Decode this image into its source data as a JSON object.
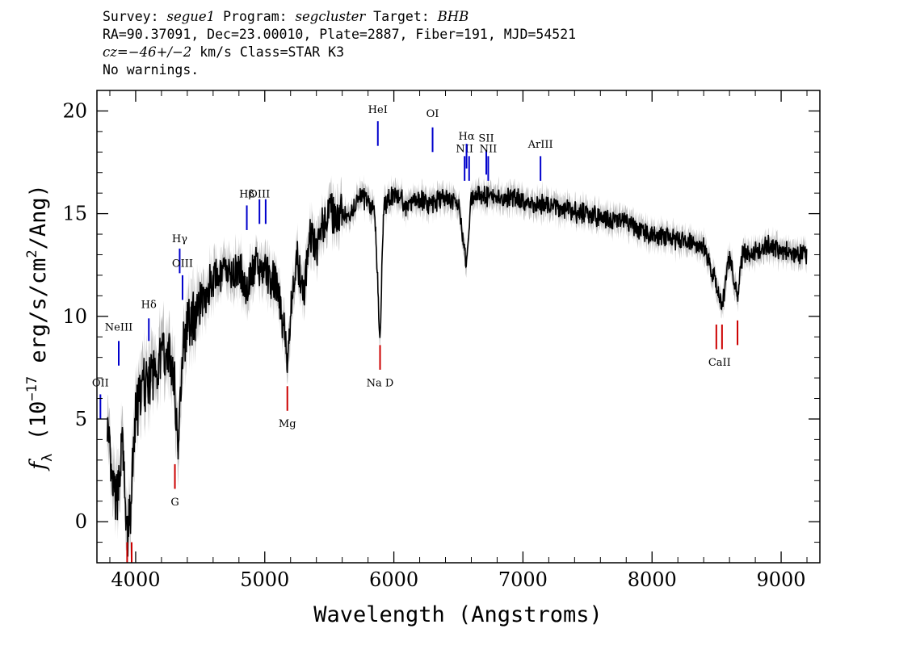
{
  "header": {
    "line1": {
      "survey_label": "Survey:",
      "survey": "segue1",
      "program_label": "Program:",
      "program": "segcluster",
      "target_label": "Target:",
      "target": "BHB"
    },
    "line2": "RA=90.37091, Dec=23.00010, Plate=2887, Fiber=191, MJD=54521",
    "line3": {
      "cz_label": "cz=",
      "cz_value": "−46+/−2",
      "cz_unit": " km/s Class=STAR K3"
    },
    "line4": "No warnings."
  },
  "chart_data": {
    "type": "line",
    "title": "",
    "xlabel": "Wavelength (Angstroms)",
    "ylabel": {
      "prefix": "f",
      "sub": "λ",
      "rest": " (10",
      "exp": "−17",
      "rest2": " erg/s/cm",
      "exp2": "2",
      "rest3": "/Ang)"
    },
    "xlim": [
      3700,
      9300
    ],
    "ylim": [
      -2,
      21
    ],
    "xticks": [
      4000,
      5000,
      6000,
      7000,
      8000,
      9000
    ],
    "yticks": [
      0,
      5,
      10,
      15,
      20
    ],
    "continuum": [
      [
        3780,
        4.8
      ],
      [
        3810,
        2.0
      ],
      [
        3850,
        1.0
      ],
      [
        3900,
        3.8
      ],
      [
        3930,
        -0.8
      ],
      [
        3960,
        0.5
      ],
      [
        4000,
        5.2
      ],
      [
        4050,
        6.5
      ],
      [
        4100,
        7.0
      ],
      [
        4150,
        7.3
      ],
      [
        4200,
        8.2
      ],
      [
        4250,
        8.3
      ],
      [
        4300,
        7.0
      ],
      [
        4330,
        3.2
      ],
      [
        4360,
        8.5
      ],
      [
        4400,
        9.5
      ],
      [
        4450,
        10.0
      ],
      [
        4500,
        10.8
      ],
      [
        4550,
        11.2
      ],
      [
        4600,
        11.8
      ],
      [
        4650,
        11.9
      ],
      [
        4700,
        12.1
      ],
      [
        4750,
        12.1
      ],
      [
        4800,
        12.3
      ],
      [
        4860,
        11.3
      ],
      [
        4900,
        12.2
      ],
      [
        4950,
        12.4
      ],
      [
        5000,
        12.2
      ],
      [
        5050,
        11.8
      ],
      [
        5100,
        11.3
      ],
      [
        5150,
        9.5
      ],
      [
        5175,
        7.5
      ],
      [
        5200,
        10.4
      ],
      [
        5250,
        12.8
      ],
      [
        5300,
        11.2
      ],
      [
        5350,
        14.0
      ],
      [
        5400,
        13.3
      ],
      [
        5450,
        14.6
      ],
      [
        5500,
        15.2
      ],
      [
        5550,
        14.6
      ],
      [
        5600,
        15.0
      ],
      [
        5650,
        14.8
      ],
      [
        5700,
        15.5
      ],
      [
        5750,
        15.8
      ],
      [
        5800,
        15.6
      ],
      [
        5850,
        15.2
      ],
      [
        5893,
        8.8
      ],
      [
        5920,
        15.4
      ],
      [
        5950,
        15.6
      ],
      [
        6000,
        15.9
      ],
      [
        6050,
        15.8
      ],
      [
        6100,
        15.3
      ],
      [
        6150,
        15.6
      ],
      [
        6200,
        15.7
      ],
      [
        6250,
        15.5
      ],
      [
        6300,
        15.5
      ],
      [
        6350,
        15.6
      ],
      [
        6400,
        15.8
      ],
      [
        6450,
        15.6
      ],
      [
        6500,
        15.5
      ],
      [
        6563,
        12.6
      ],
      [
        6600,
        15.8
      ],
      [
        6650,
        15.9
      ],
      [
        6700,
        15.9
      ],
      [
        6750,
        15.8
      ],
      [
        6800,
        15.9
      ],
      [
        6900,
        15.8
      ],
      [
        7000,
        15.6
      ],
      [
        7100,
        15.4
      ],
      [
        7200,
        15.5
      ],
      [
        7300,
        15.3
      ],
      [
        7400,
        15.1
      ],
      [
        7500,
        15.0
      ],
      [
        7600,
        14.8
      ],
      [
        7700,
        14.6
      ],
      [
        7800,
        14.6
      ],
      [
        7900,
        14.2
      ],
      [
        8000,
        14.0
      ],
      [
        8100,
        13.8
      ],
      [
        8200,
        13.7
      ],
      [
        8300,
        13.6
      ],
      [
        8400,
        13.4
      ],
      [
        8498,
        11.5
      ],
      [
        8542,
        10.5
      ],
      [
        8600,
        13.0
      ],
      [
        8662,
        10.9
      ],
      [
        8700,
        13.0
      ],
      [
        8800,
        13.2
      ],
      [
        8900,
        13.4
      ],
      [
        9000,
        13.2
      ],
      [
        9100,
        13.1
      ],
      [
        9200,
        13.0
      ]
    ],
    "emission_lines": [
      {
        "label": "OII",
        "wavelength": 3727,
        "y_label": 6.6,
        "y_top": 6.2,
        "y_bot": 5.0
      },
      {
        "label": "NeIII",
        "wavelength": 3869,
        "y_label": 9.3,
        "y_top": 8.8,
        "y_bot": 7.6
      },
      {
        "label": "Hδ",
        "wavelength": 4102,
        "y_label": 10.4,
        "y_top": 9.9,
        "y_bot": 8.8
      },
      {
        "label": "Hγ",
        "wavelength": 4341,
        "y_label": 13.6,
        "y_top": 13.3,
        "y_bot": 12.1
      },
      {
        "label": "OIII",
        "wavelength": 4363,
        "y_label": 12.4,
        "y_top": 12.0,
        "y_bot": 10.8
      },
      {
        "label": "Hβ",
        "wavelength": 4861,
        "y_label": 15.8,
        "y_top": 15.4,
        "y_bot": 14.2
      },
      {
        "label": "OIII",
        "wavelength": 4959,
        "y_label": 15.8,
        "y_top": 15.7,
        "y_bot": 14.5
      },
      {
        "label": "",
        "wavelength": 5007,
        "y_label": 15.8,
        "y_top": 15.7,
        "y_bot": 14.5
      },
      {
        "label": "HeI",
        "wavelength": 5876,
        "y_label": 19.9,
        "y_top": 19.5,
        "y_bot": 18.3
      },
      {
        "label": "OI",
        "wavelength": 6300,
        "y_label": 19.7,
        "y_top": 19.2,
        "y_bot": 18.0
      },
      {
        "label": "NII",
        "wavelength": 6548,
        "y_label": 18.0,
        "y_top": 17.8,
        "y_bot": 16.6
      },
      {
        "label": "Hα",
        "wavelength": 6563,
        "y_label": 18.6,
        "y_top": 18.4,
        "y_bot": 17.2
      },
      {
        "label": "",
        "wavelength": 6583,
        "y_label": 18.0,
        "y_top": 17.8,
        "y_bot": 16.6
      },
      {
        "label": "SII",
        "wavelength": 6716,
        "y_label": 18.5,
        "y_top": 18.1,
        "y_bot": 16.9
      },
      {
        "label": "NII",
        "wavelength": 6731,
        "y_label": 18.0,
        "y_top": 17.8,
        "y_bot": 16.6
      },
      {
        "label": "ArIII",
        "wavelength": 7136,
        "y_label": 18.2,
        "y_top": 17.8,
        "y_bot": 16.6
      }
    ],
    "absorption_lines": [
      {
        "label": "",
        "wavelength": 3934,
        "y_top": -1.0,
        "y_bot": -2.0
      },
      {
        "label": "",
        "wavelength": 3969,
        "y_top": -1.0,
        "y_bot": -2.0
      },
      {
        "label": "G",
        "wavelength": 4304,
        "y_top": 2.8,
        "y_bot": 1.6,
        "y_label": 0.8
      },
      {
        "label": "Mg",
        "wavelength": 5175,
        "y_top": 6.6,
        "y_bot": 5.4,
        "y_label": 4.6
      },
      {
        "label": "Na D",
        "wavelength": 5893,
        "y_top": 8.6,
        "y_bot": 7.4,
        "y_label": 6.6
      },
      {
        "label": "CaII",
        "wavelength": 8498,
        "y_top": 9.6,
        "y_bot": 8.4,
        "y_label": 7.6
      },
      {
        "label": "",
        "wavelength": 8542,
        "y_top": 9.6,
        "y_bot": 8.4
      },
      {
        "label": "",
        "wavelength": 8662,
        "y_top": 9.8,
        "y_bot": 8.6
      }
    ],
    "colors": {
      "flux": "#000000",
      "error_band": "#bdbdbd",
      "emission": "#0000cc",
      "absorption": "#cc0000"
    }
  }
}
